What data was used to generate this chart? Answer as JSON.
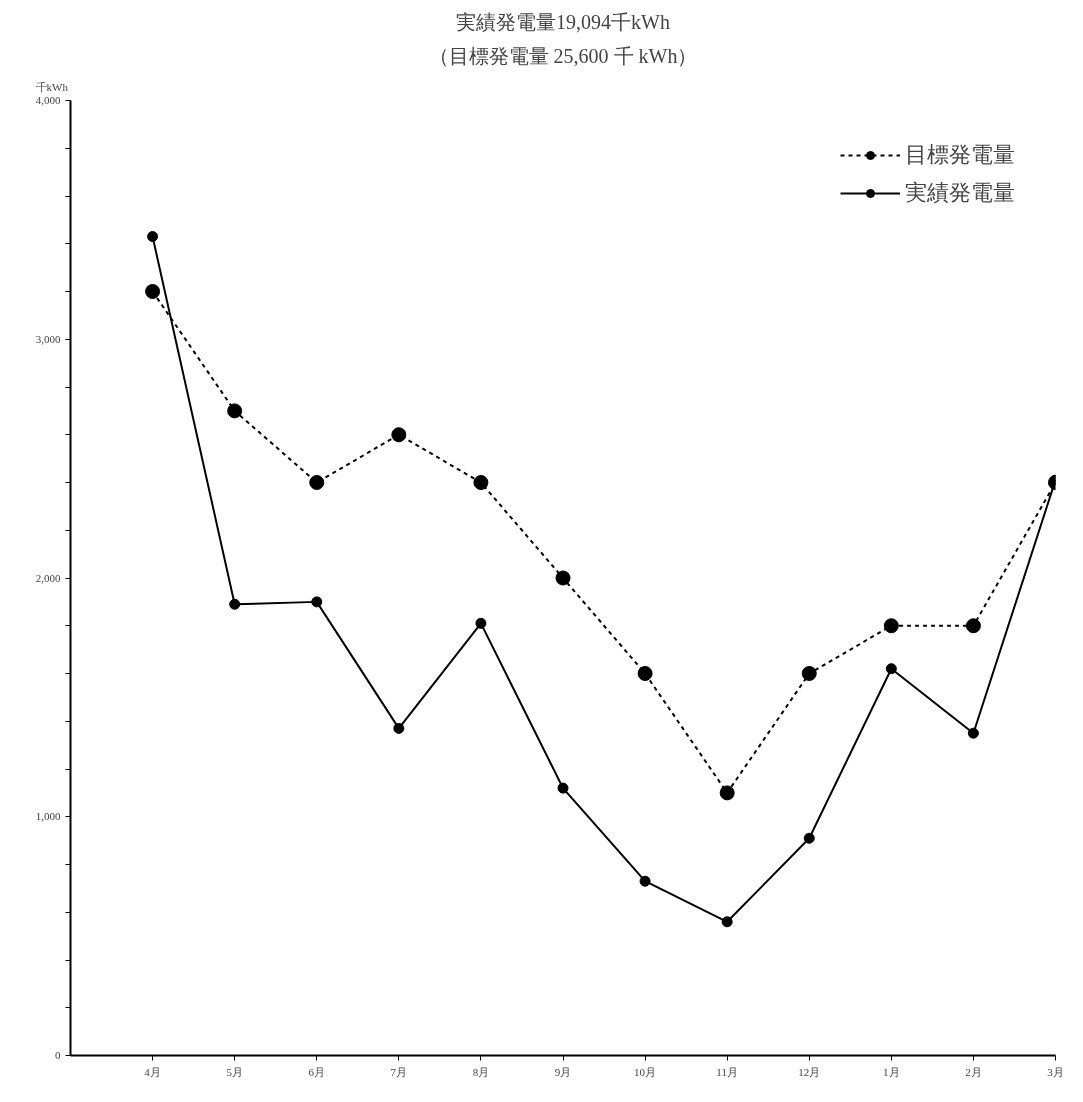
{
  "chart_data": {
    "type": "line",
    "title": "実績発電量19,094千kWh",
    "subtitle": "（目標発電量 25,600 千 kWh）",
    "ylabel": "千kWh",
    "categories": [
      "4月",
      "5月",
      "6月",
      "7月",
      "8月",
      "9月",
      "10月",
      "11月",
      "12月",
      "1月",
      "2月",
      "3月"
    ],
    "series": [
      {
        "name": "目標発電量",
        "color": "#000000",
        "line_style": "dotted",
        "values": [
          3200,
          2700,
          2400,
          2600,
          2400,
          2000,
          1600,
          1100,
          1600,
          1800,
          1800,
          2400
        ]
      },
      {
        "name": "実績発電量",
        "color": "#000000",
        "line_style": "solid",
        "values": [
          3430,
          1890,
          1900,
          1370,
          1810,
          1120,
          730,
          560,
          910,
          1620,
          1350,
          2410
        ]
      }
    ],
    "ylim": [
      0,
      4000
    ],
    "yticks": [
      {
        "value": 0,
        "label": "0"
      },
      {
        "value": 200,
        "label": null
      },
      {
        "value": 400,
        "label": null
      },
      {
        "value": 600,
        "label": null
      },
      {
        "value": 800,
        "label": null
      },
      {
        "value": 1000,
        "label": "1,000"
      },
      {
        "value": 1200,
        "label": null
      },
      {
        "value": 1400,
        "label": null
      },
      {
        "value": 1600,
        "label": null
      },
      {
        "value": 1800,
        "label": null
      },
      {
        "value": 2000,
        "label": "2,000"
      },
      {
        "value": 2200,
        "label": null
      },
      {
        "value": 2400,
        "label": null
      },
      {
        "value": 2600,
        "label": null
      },
      {
        "value": 2800,
        "label": null
      },
      {
        "value": 3000,
        "label": "3,000"
      },
      {
        "value": 3200,
        "label": null
      },
      {
        "value": 3400,
        "label": null
      },
      {
        "value": 3600,
        "label": null
      },
      {
        "value": 3800,
        "label": null
      },
      {
        "value": 4000,
        "label": "4,000"
      }
    ],
    "grid": false,
    "legend": "top right",
    "marker": "circle"
  }
}
